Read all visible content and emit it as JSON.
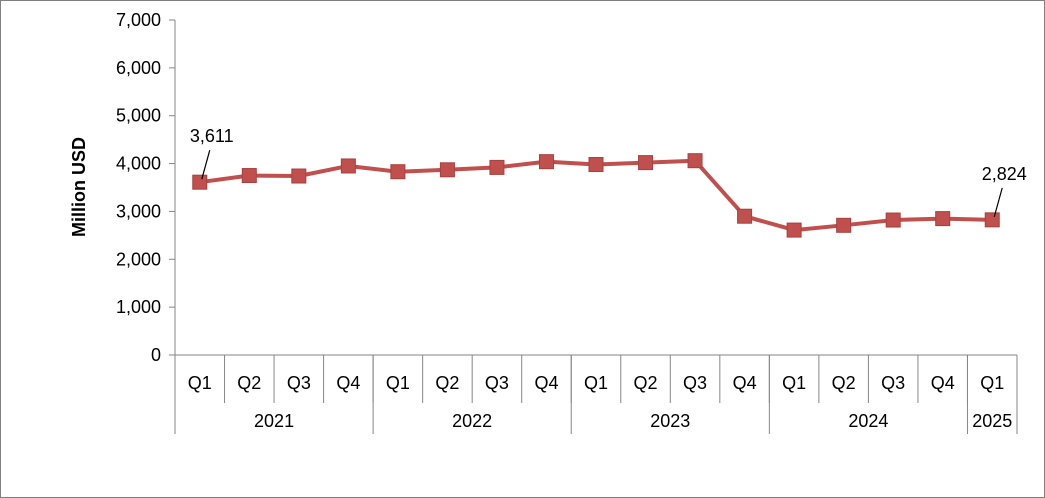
{
  "chart_data": {
    "type": "line",
    "ylabel": "Million USD",
    "ylim": [
      0,
      7000
    ],
    "yticks": [
      "0",
      "1,000",
      "2,000",
      "3,000",
      "4,000",
      "5,000",
      "6,000",
      "7,000"
    ],
    "ytick_values": [
      0,
      1000,
      2000,
      3000,
      4000,
      5000,
      6000,
      7000
    ],
    "grid": false,
    "legend": "none",
    "categories": [
      "Q1",
      "Q2",
      "Q3",
      "Q4",
      "Q1",
      "Q2",
      "Q3",
      "Q4",
      "Q1",
      "Q2",
      "Q3",
      "Q4",
      "Q1",
      "Q2",
      "Q3",
      "Q4",
      "Q1"
    ],
    "year_groups": [
      {
        "label": "2021",
        "span": 4
      },
      {
        "label": "2022",
        "span": 4
      },
      {
        "label": "2023",
        "span": 4
      },
      {
        "label": "2024",
        "span": 4
      },
      {
        "label": "2025",
        "span": 1
      }
    ],
    "series": [
      {
        "color": "#C0504D",
        "values": [
          3611,
          3750,
          3740,
          3950,
          3830,
          3870,
          3920,
          4040,
          3980,
          4020,
          4060,
          2900,
          2610,
          2710,
          2820,
          2850,
          2824
        ]
      }
    ],
    "data_labels": [
      {
        "index": 0,
        "text": "3,611"
      },
      {
        "index": 16,
        "text": "2,824"
      }
    ]
  }
}
